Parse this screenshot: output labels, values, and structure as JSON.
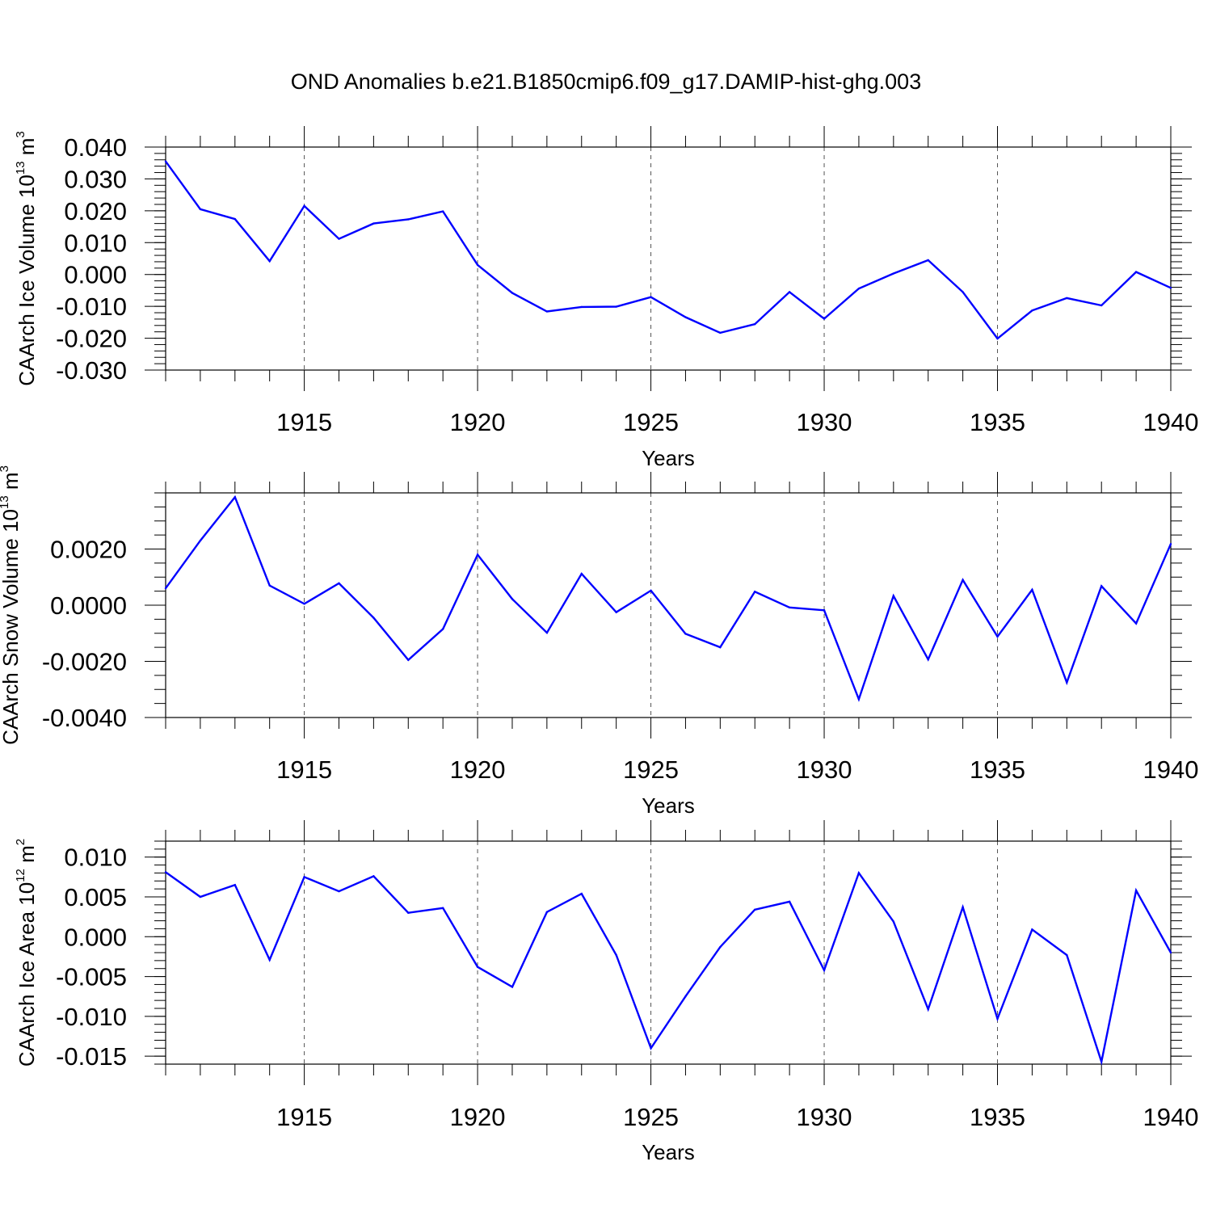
{
  "title": "OND Anomalies b.e21.B1850cmip6.f09_g17.DAMIP-hist-ghg.003",
  "colors": {
    "line": "#0000ff",
    "axis": "#000000",
    "grid": "#555555"
  },
  "chart_data": [
    {
      "type": "line",
      "ylabel": "CAArch Ice Volume 10",
      "ylabel_exp": "13",
      "ylabel_unit": " m",
      "ylabel_unit_exp": "3",
      "xlabel": "Years",
      "xlim": [
        1911,
        1940
      ],
      "ylim": [
        -0.03,
        0.04
      ],
      "x_ticks": [
        1915,
        1920,
        1925,
        1930,
        1935,
        1940
      ],
      "x_tick_labels": [
        "1915",
        "1920",
        "1925",
        "1930",
        "1935",
        "1940"
      ],
      "y_ticks": [
        -0.03,
        -0.02,
        -0.01,
        0.0,
        0.01,
        0.02,
        0.03,
        0.04
      ],
      "y_tick_labels": [
        "-0.030",
        "-0.020",
        "-0.010",
        "0.000",
        "0.010",
        "0.020",
        "0.030",
        "0.040"
      ],
      "y_minor_step": 0.002,
      "grid_x": true,
      "x": [
        1911,
        1912,
        1913,
        1914,
        1915,
        1916,
        1917,
        1918,
        1919,
        1920,
        1921,
        1922,
        1923,
        1924,
        1925,
        1926,
        1927,
        1928,
        1929,
        1930,
        1931,
        1932,
        1933,
        1934,
        1935,
        1936,
        1937,
        1938,
        1939,
        1940
      ],
      "values": [
        0.0355,
        0.0205,
        0.0174,
        0.0042,
        0.0215,
        0.0112,
        0.016,
        0.0173,
        0.0198,
        0.003,
        -0.0058,
        -0.0116,
        -0.0102,
        -0.0101,
        -0.0071,
        -0.0134,
        -0.0183,
        -0.0156,
        -0.0055,
        -0.0139,
        -0.0044,
        0.0003,
        0.0045,
        -0.0055,
        -0.0201,
        -0.0113,
        -0.0074,
        -0.0097,
        0.0008,
        -0.0042
      ]
    },
    {
      "type": "line",
      "ylabel": "CAArch Snow Volume 10",
      "ylabel_exp": "13",
      "ylabel_unit": " m",
      "ylabel_unit_exp": "3",
      "xlabel": "Years",
      "xlim": [
        1911,
        1940
      ],
      "ylim": [
        -0.004,
        0.004
      ],
      "x_ticks": [
        1915,
        1920,
        1925,
        1930,
        1935,
        1940
      ],
      "x_tick_labels": [
        "1915",
        "1920",
        "1925",
        "1930",
        "1935",
        "1940"
      ],
      "y_ticks": [
        -0.004,
        -0.002,
        0.0,
        0.002
      ],
      "y_tick_labels": [
        "-0.0040",
        "-0.0020",
        "0.0000",
        "0.0020"
      ],
      "y_minor_step": 0.0005,
      "grid_x": true,
      "x": [
        1911,
        1912,
        1913,
        1914,
        1915,
        1916,
        1917,
        1918,
        1919,
        1920,
        1921,
        1922,
        1923,
        1924,
        1925,
        1926,
        1927,
        1928,
        1929,
        1930,
        1931,
        1932,
        1933,
        1934,
        1935,
        1936,
        1937,
        1938,
        1939,
        1940
      ],
      "values": [
        0.0006,
        0.0023,
        0.00385,
        0.0007,
        5e-05,
        0.00078,
        -0.00045,
        -0.00195,
        -0.00085,
        0.0018,
        0.00022,
        -0.00098,
        0.00112,
        -0.00025,
        0.00052,
        -0.00102,
        -0.0015,
        0.00048,
        -8e-05,
        -0.00018,
        -0.00335,
        0.00033,
        -0.00193,
        0.0009,
        -0.00112,
        0.00055,
        -0.00275,
        0.00068,
        -0.00065,
        0.00218
      ]
    },
    {
      "type": "line",
      "ylabel": "CAArch Ice Area 10",
      "ylabel_exp": "12",
      "ylabel_unit": " m",
      "ylabel_unit_exp": "2",
      "xlabel": "Years",
      "xlim": [
        1911,
        1940
      ],
      "ylim": [
        -0.016,
        0.012
      ],
      "x_ticks": [
        1915,
        1920,
        1925,
        1930,
        1935,
        1940
      ],
      "x_tick_labels": [
        "1915",
        "1920",
        "1925",
        "1930",
        "1935",
        "1940"
      ],
      "y_ticks": [
        -0.015,
        -0.01,
        -0.005,
        0.0,
        0.005,
        0.01
      ],
      "y_tick_labels": [
        "-0.015",
        "-0.010",
        "-0.005",
        "0.000",
        "0.005",
        "0.010"
      ],
      "y_minor_step": 0.001,
      "grid_x": true,
      "x": [
        1911,
        1912,
        1913,
        1914,
        1915,
        1916,
        1917,
        1918,
        1919,
        1920,
        1921,
        1922,
        1923,
        1924,
        1925,
        1926,
        1927,
        1928,
        1929,
        1930,
        1931,
        1932,
        1933,
        1934,
        1935,
        1936,
        1937,
        1938,
        1939,
        1940
      ],
      "values": [
        0.0081,
        0.005,
        0.0065,
        -0.0029,
        0.0075,
        0.0057,
        0.0076,
        0.003,
        0.0036,
        -0.0038,
        -0.0063,
        0.0031,
        0.0054,
        -0.0023,
        -0.014,
        -0.0075,
        -0.0013,
        0.0034,
        0.0044,
        -0.0042,
        0.008,
        0.0019,
        -0.0091,
        0.0037,
        -0.0103,
        0.0009,
        -0.0023,
        -0.0157,
        0.0058,
        -0.002
      ]
    }
  ]
}
